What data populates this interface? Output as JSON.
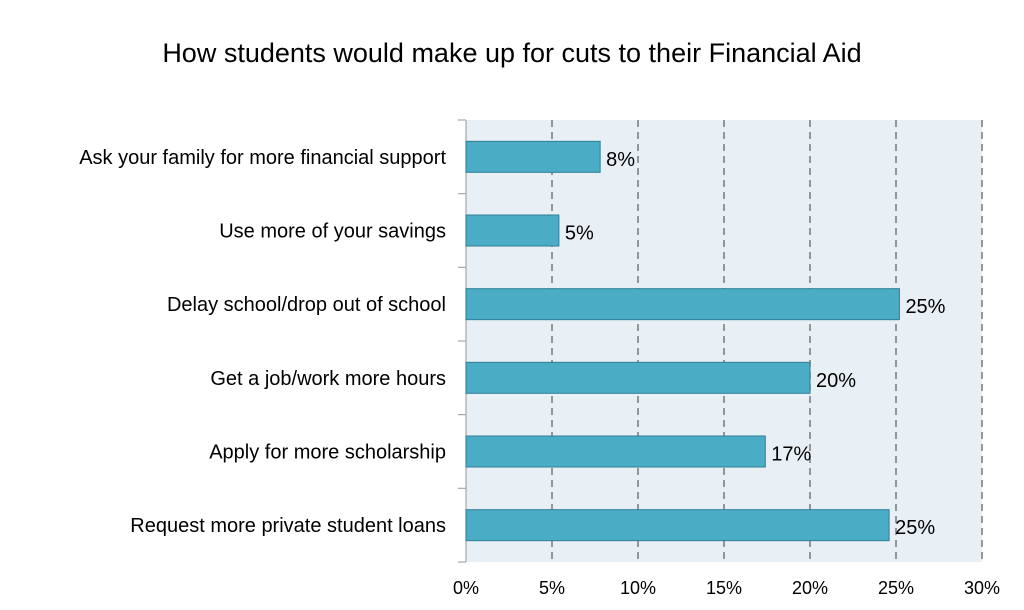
{
  "chart_data": {
    "type": "bar",
    "orientation": "horizontal",
    "title": "How students would make up for cuts to their Financial Aid",
    "xlabel": "",
    "ylabel": "",
    "categories": [
      "Ask your family for more financial support",
      "Use more of your savings",
      "Delay school/drop out of school",
      "Get a job/work more hours",
      "Apply for more scholarship",
      "Request more private student loans"
    ],
    "values": [
      7.8,
      5.4,
      25.2,
      20.0,
      17.4,
      24.6
    ],
    "data_labels": [
      "8%",
      "5%",
      "25%",
      "20%",
      "17%",
      "25%"
    ],
    "xlim": [
      0,
      30
    ],
    "x_ticks": [
      0,
      5,
      10,
      15,
      20,
      25,
      30
    ],
    "x_tick_labels": [
      "0%",
      "5%",
      "10%",
      "15%",
      "20%",
      "25%",
      "30%"
    ],
    "grid": "vertical dashed",
    "legend": "none",
    "colors": {
      "bar_fill": "#4bacc6",
      "bar_stroke": "#2f7f96",
      "plot_background": "#e9f0f5",
      "grid": "#808080",
      "axis": "#a6a6a6"
    }
  }
}
